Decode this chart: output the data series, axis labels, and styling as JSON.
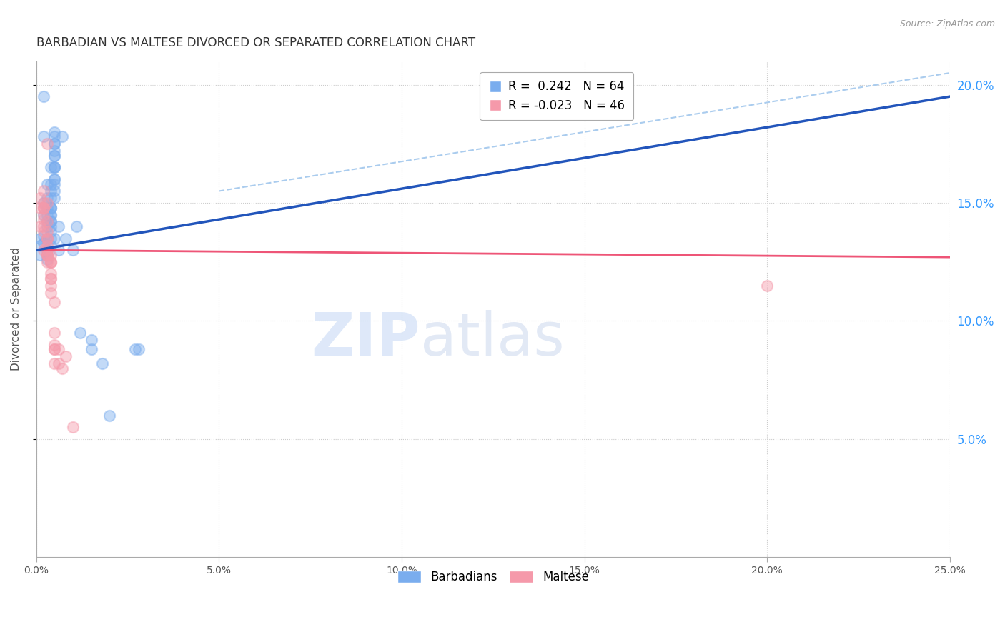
{
  "title": "BARBADIAN VS MALTESE DIVORCED OR SEPARATED CORRELATION CHART",
  "source": "Source: ZipAtlas.com",
  "ylabel": "Divorced or Separated",
  "barbadian_color": "#7aadee",
  "maltese_color": "#f599aa",
  "trendline_barbadian_color": "#2255bb",
  "trendline_maltese_color": "#ee5577",
  "dashed_line_color": "#aaccee",
  "xlim": [
    0.0,
    0.25
  ],
  "ylim": [
    0.0,
    0.21
  ],
  "watermark_zip": "ZIP",
  "watermark_atlas": "atlas",
  "barbadian_trendline": [
    [
      0.0,
      0.13
    ],
    [
      0.25,
      0.195
    ]
  ],
  "maltese_trendline": [
    [
      0.0,
      0.13
    ],
    [
      0.25,
      0.127
    ]
  ],
  "dashed_line": [
    [
      0.05,
      0.155
    ],
    [
      0.25,
      0.205
    ]
  ],
  "barbadian_points": [
    [
      0.001,
      0.135
    ],
    [
      0.001,
      0.132
    ],
    [
      0.001,
      0.128
    ],
    [
      0.002,
      0.136
    ],
    [
      0.002,
      0.133
    ],
    [
      0.002,
      0.195
    ],
    [
      0.002,
      0.178
    ],
    [
      0.002,
      0.15
    ],
    [
      0.002,
      0.145
    ],
    [
      0.003,
      0.158
    ],
    [
      0.003,
      0.152
    ],
    [
      0.003,
      0.148
    ],
    [
      0.003,
      0.145
    ],
    [
      0.003,
      0.14
    ],
    [
      0.003,
      0.135
    ],
    [
      0.003,
      0.13
    ],
    [
      0.003,
      0.128
    ],
    [
      0.003,
      0.126
    ],
    [
      0.003,
      0.142
    ],
    [
      0.004,
      0.165
    ],
    [
      0.004,
      0.158
    ],
    [
      0.004,
      0.148
    ],
    [
      0.004,
      0.142
    ],
    [
      0.004,
      0.155
    ],
    [
      0.004,
      0.148
    ],
    [
      0.004,
      0.145
    ],
    [
      0.004,
      0.14
    ],
    [
      0.004,
      0.152
    ],
    [
      0.004,
      0.148
    ],
    [
      0.004,
      0.145
    ],
    [
      0.004,
      0.142
    ],
    [
      0.004,
      0.138
    ],
    [
      0.004,
      0.135
    ],
    [
      0.004,
      0.132
    ],
    [
      0.005,
      0.165
    ],
    [
      0.005,
      0.16
    ],
    [
      0.005,
      0.155
    ],
    [
      0.005,
      0.17
    ],
    [
      0.005,
      0.16
    ],
    [
      0.005,
      0.152
    ],
    [
      0.005,
      0.165
    ],
    [
      0.005,
      0.158
    ],
    [
      0.005,
      0.175
    ],
    [
      0.005,
      0.165
    ],
    [
      0.005,
      0.175
    ],
    [
      0.005,
      0.17
    ],
    [
      0.005,
      0.178
    ],
    [
      0.005,
      0.172
    ],
    [
      0.005,
      0.18
    ],
    [
      0.005,
      0.135
    ],
    [
      0.006,
      0.13
    ],
    [
      0.006,
      0.14
    ],
    [
      0.007,
      0.178
    ],
    [
      0.008,
      0.135
    ],
    [
      0.01,
      0.13
    ],
    [
      0.011,
      0.14
    ],
    [
      0.012,
      0.095
    ],
    [
      0.015,
      0.092
    ],
    [
      0.015,
      0.088
    ],
    [
      0.018,
      0.082
    ],
    [
      0.02,
      0.06
    ],
    [
      0.027,
      0.088
    ],
    [
      0.028,
      0.088
    ]
  ],
  "maltese_points": [
    [
      0.001,
      0.14
    ],
    [
      0.001,
      0.148
    ],
    [
      0.001,
      0.152
    ],
    [
      0.002,
      0.148
    ],
    [
      0.002,
      0.138
    ],
    [
      0.002,
      0.13
    ],
    [
      0.002,
      0.15
    ],
    [
      0.002,
      0.155
    ],
    [
      0.002,
      0.148
    ],
    [
      0.002,
      0.143
    ],
    [
      0.002,
      0.14
    ],
    [
      0.002,
      0.148
    ],
    [
      0.002,
      0.145
    ],
    [
      0.003,
      0.138
    ],
    [
      0.003,
      0.135
    ],
    [
      0.003,
      0.15
    ],
    [
      0.003,
      0.142
    ],
    [
      0.003,
      0.128
    ],
    [
      0.003,
      0.125
    ],
    [
      0.003,
      0.132
    ],
    [
      0.003,
      0.128
    ],
    [
      0.003,
      0.175
    ],
    [
      0.003,
      0.135
    ],
    [
      0.003,
      0.128
    ],
    [
      0.003,
      0.13
    ],
    [
      0.004,
      0.125
    ],
    [
      0.004,
      0.12
    ],
    [
      0.004,
      0.115
    ],
    [
      0.004,
      0.128
    ],
    [
      0.004,
      0.125
    ],
    [
      0.004,
      0.118
    ],
    [
      0.004,
      0.112
    ],
    [
      0.004,
      0.125
    ],
    [
      0.004,
      0.118
    ],
    [
      0.005,
      0.108
    ],
    [
      0.005,
      0.088
    ],
    [
      0.005,
      0.095
    ],
    [
      0.005,
      0.088
    ],
    [
      0.005,
      0.09
    ],
    [
      0.005,
      0.082
    ],
    [
      0.006,
      0.088
    ],
    [
      0.006,
      0.082
    ],
    [
      0.007,
      0.08
    ],
    [
      0.008,
      0.085
    ],
    [
      0.2,
      0.115
    ],
    [
      0.01,
      0.055
    ]
  ]
}
